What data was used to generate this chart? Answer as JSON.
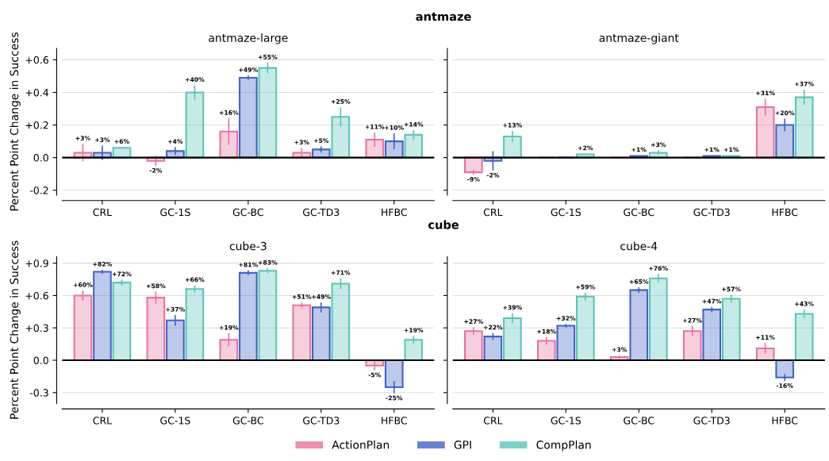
{
  "chart_data": [
    {
      "type": "bar",
      "title": "antmaze-large",
      "annotations": [
        "antmaze"
      ],
      "ylabel": "Percent Point Change in Success",
      "categories": [
        "CRL",
        "GC-1S",
        "GC-BC",
        "GC-TD3",
        "HFBC"
      ],
      "ylim": [
        -0.23,
        0.67
      ],
      "yticks": [
        {
          "value": -0.2,
          "label": "-0.2"
        },
        {
          "value": 0,
          "label": "0.0"
        },
        {
          "value": 0.2,
          "label": "+0.2"
        },
        {
          "value": 0.4,
          "label": "+0.4"
        },
        {
          "value": 0.6,
          "label": "+0.6"
        }
      ],
      "grid": "y",
      "legend": "bottom",
      "ref_lines": [
        {
          "axis": "y",
          "value": 0,
          "color": "#000000"
        }
      ],
      "series": [
        {
          "name": "ActionPlan",
          "color": "#e8739f",
          "values": [
            0.03,
            -0.02,
            0.16,
            0.03,
            0.11
          ],
          "errors": [
            0.05,
            0.026,
            0.077,
            0.025,
            0.04
          ],
          "value_labels": [
            "+3%",
            "-2%",
            "+16%",
            "+3%",
            "+11%"
          ]
        },
        {
          "name": "GPI",
          "color": "#4263c4",
          "values": [
            0.03,
            0.04,
            0.49,
            0.05,
            0.1
          ],
          "errors": [
            0.04,
            0.02,
            0.01,
            0.015,
            0.045
          ],
          "value_labels": [
            "+3%",
            "+4%",
            "+49%",
            "+5%",
            "+10%"
          ]
        },
        {
          "name": "CompPlan",
          "color": "#5cc4b9",
          "values": [
            0.06,
            0.4,
            0.55,
            0.25,
            0.14
          ],
          "errors": [
            null,
            0.04,
            0.028,
            0.055,
            0.025
          ],
          "value_labels": [
            "+6%",
            "+40%",
            "+55%",
            "+25%",
            "+14%"
          ]
        }
      ]
    },
    {
      "type": "bar",
      "title": "antmaze-giant",
      "categories": [
        "CRL",
        "GC-1S",
        "GC-BC",
        "GC-TD3",
        "HFBC"
      ],
      "ylim": [
        -0.23,
        0.67
      ],
      "yticks": [
        {
          "value": -0.2,
          "label": "-0.2"
        },
        {
          "value": 0,
          "label": "0.0"
        },
        {
          "value": 0.2,
          "label": "+0.2"
        },
        {
          "value": 0.4,
          "label": "+0.4"
        },
        {
          "value": 0.6,
          "label": "+0.6"
        }
      ],
      "tick_labels": "x",
      "grid": "y",
      "legend": "bottom",
      "ref_lines": [
        {
          "axis": "y",
          "value": 0,
          "color": "#000000"
        }
      ],
      "series": [
        {
          "name": "ActionPlan",
          "color": "#e8739f",
          "values": [
            -0.09,
            0,
            0,
            0,
            0.31
          ],
          "errors": [
            0.01,
            null,
            null,
            null,
            0.047
          ],
          "value_labels": [
            "-9%",
            null,
            null,
            null,
            "+31%"
          ]
        },
        {
          "name": "GPI",
          "color": "#4263c4",
          "values": [
            -0.02,
            0,
            0.01,
            0.01,
            0.2
          ],
          "errors": [
            0.055,
            null,
            null,
            null,
            0.035
          ],
          "value_labels": [
            "-2%",
            null,
            "+1%",
            "+1%",
            "+20%"
          ]
        },
        {
          "name": "CompPlan",
          "color": "#5cc4b9",
          "values": [
            0.13,
            0.02,
            0.03,
            0.01,
            0.37
          ],
          "errors": [
            0.03,
            null,
            0.01,
            null,
            0.043
          ],
          "value_labels": [
            "+13%",
            "+2%",
            "+3%",
            "+1%",
            "+37%"
          ]
        }
      ]
    },
    {
      "type": "bar",
      "title": "cube-3",
      "annotations": [
        "cube"
      ],
      "ylabel": "Percent Point Change in Success",
      "categories": [
        "CRL",
        "GC-1S",
        "GC-BC",
        "GC-TD3",
        "HFBC"
      ],
      "ylim": [
        -0.4,
        0.96
      ],
      "yticks": [
        {
          "value": -0.3,
          "label": "-0.3"
        },
        {
          "value": 0,
          "label": "0.0"
        },
        {
          "value": 0.3,
          "label": "+0.3"
        },
        {
          "value": 0.6,
          "label": "+0.6"
        },
        {
          "value": 0.9,
          "label": "+0.9"
        }
      ],
      "grid": "y",
      "legend": "bottom",
      "ref_lines": [
        {
          "axis": "y",
          "value": 0,
          "color": "#000000"
        }
      ],
      "series": [
        {
          "name": "ActionPlan",
          "color": "#e8739f",
          "values": [
            0.6,
            0.58,
            0.19,
            0.51,
            -0.05
          ],
          "errors": [
            0.04,
            0.05,
            0.054,
            0.02,
            0.036
          ],
          "value_labels": [
            "+60%",
            "+58%",
            "+19%",
            "+51%",
            "-5%"
          ]
        },
        {
          "name": "GPI",
          "color": "#4263c4",
          "values": [
            0.82,
            0.37,
            0.81,
            0.49,
            -0.25
          ],
          "errors": [
            0.012,
            0.043,
            0.017,
            0.04,
            0.05
          ],
          "value_labels": [
            "+82%",
            "+37%",
            "+81%",
            "+49%",
            "-25%"
          ]
        },
        {
          "name": "CompPlan",
          "color": "#5cc4b9",
          "values": [
            0.72,
            0.66,
            0.83,
            0.71,
            0.19
          ],
          "errors": [
            0.02,
            0.028,
            0.017,
            0.043,
            0.03
          ],
          "value_labels": [
            "+72%",
            "+66%",
            "+83%",
            "+71%",
            "+19%"
          ]
        }
      ]
    },
    {
      "type": "bar",
      "title": "cube-4",
      "categories": [
        "CRL",
        "GC-1S",
        "GC-BC",
        "GC-TD3",
        "HFBC"
      ],
      "ylim": [
        -0.4,
        0.96
      ],
      "yticks": [
        {
          "value": -0.3,
          "label": "-0.3"
        },
        {
          "value": 0,
          "label": "0.0"
        },
        {
          "value": 0.3,
          "label": "+0.3"
        },
        {
          "value": 0.6,
          "label": "+0.6"
        },
        {
          "value": 0.9,
          "label": "+0.9"
        }
      ],
      "tick_labels": "x",
      "grid": "y",
      "legend": "bottom",
      "ref_lines": [
        {
          "axis": "y",
          "value": 0,
          "color": "#000000"
        }
      ],
      "series": [
        {
          "name": "ActionPlan",
          "color": "#e8739f",
          "values": [
            0.27,
            0.18,
            0.03,
            0.27,
            0.11
          ],
          "errors": [
            0.03,
            0.028,
            0.01,
            0.04,
            0.043
          ],
          "value_labels": [
            "+27%",
            "+18%",
            "+3%",
            "+27%",
            "+11%"
          ]
        },
        {
          "name": "GPI",
          "color": "#4263c4",
          "values": [
            0.22,
            0.32,
            0.65,
            0.47,
            -0.16
          ],
          "errors": [
            0.026,
            0.01,
            0.02,
            0.018,
            0.026
          ],
          "value_labels": [
            "+22%",
            "+32%",
            "+65%",
            "+47%",
            "-16%"
          ]
        },
        {
          "name": "CompPlan",
          "color": "#5cc4b9",
          "values": [
            0.39,
            0.59,
            0.76,
            0.57,
            0.43
          ],
          "errors": [
            0.04,
            0.03,
            0.034,
            0.03,
            0.034
          ],
          "value_labels": [
            "+39%",
            "+59%",
            "+76%",
            "+57%",
            "+43%"
          ]
        }
      ]
    }
  ]
}
